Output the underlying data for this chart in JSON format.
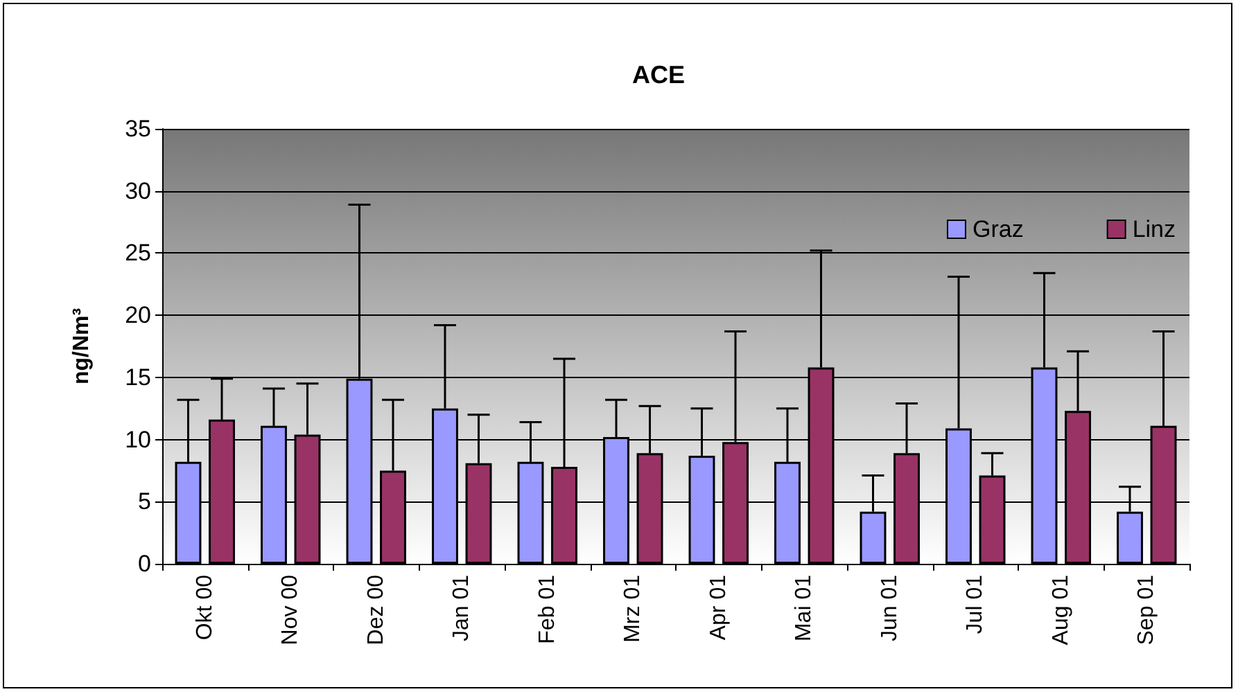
{
  "chart_data": {
    "type": "bar",
    "title": "ACE",
    "ylabel": "ng/Nm³",
    "categories": [
      "Okt 00",
      "Nov 00",
      "Dez 00",
      "Jan 01",
      "Feb 01",
      "Mrz 01",
      "Apr 01",
      "Mai 01",
      "Jun 01",
      "Jul 01",
      "Aug 01",
      "Sep 01"
    ],
    "series": [
      {
        "name": "Graz",
        "color": "#9999ff",
        "values": [
          8.2,
          11.1,
          14.9,
          12.5,
          8.2,
          10.2,
          8.7,
          8.2,
          4.2,
          10.9,
          15.8,
          4.2
        ],
        "errors": [
          [
            8.2,
            13.2
          ],
          [
            11.1,
            14.1
          ],
          [
            14.9,
            28.9
          ],
          [
            12.5,
            19.2
          ],
          [
            8.2,
            11.4
          ],
          [
            10.2,
            13.2
          ],
          [
            8.7,
            12.5
          ],
          [
            8.2,
            12.5
          ],
          [
            4.2,
            7.1
          ],
          [
            10.9,
            23.1
          ],
          [
            15.8,
            23.4
          ],
          [
            4.2,
            6.2
          ]
        ]
      },
      {
        "name": "Linz",
        "color": "#993366",
        "values": [
          11.6,
          10.4,
          7.5,
          8.1,
          7.8,
          8.9,
          9.8,
          15.8,
          8.9,
          7.1,
          12.3,
          11.1
        ],
        "errors": [
          [
            11.6,
            14.9
          ],
          [
            10.4,
            14.5
          ],
          [
            7.5,
            13.2
          ],
          [
            8.1,
            12.0
          ],
          [
            7.8,
            16.5
          ],
          [
            8.9,
            12.7
          ],
          [
            9.8,
            18.7
          ],
          [
            15.8,
            25.2
          ],
          [
            8.9,
            12.9
          ],
          [
            7.1,
            8.9
          ],
          [
            12.3,
            17.1
          ],
          [
            11.1,
            18.7
          ]
        ]
      }
    ],
    "ylim": [
      0,
      35
    ],
    "yticks": [
      0,
      5,
      10,
      15,
      20,
      25,
      30,
      35
    ],
    "grid": "y",
    "legend": "top right"
  }
}
